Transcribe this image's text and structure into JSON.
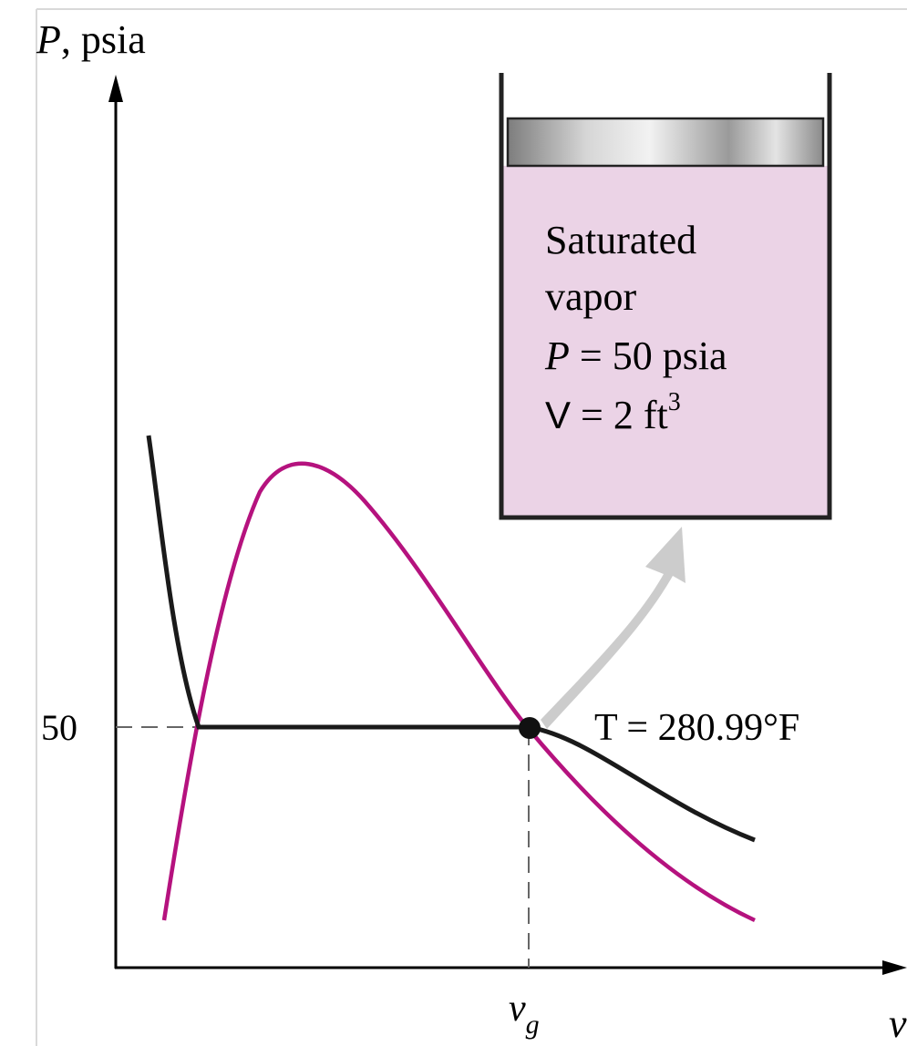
{
  "diagram": {
    "y_axis_label_var": "P",
    "y_axis_label_unit": ", psia",
    "x_axis_label": "v",
    "pressure_tick": "50",
    "vg_label_main": "v",
    "vg_label_sub": "g",
    "isotherm_label": "T = 280.99°F",
    "cylinder": {
      "line1": "Saturated",
      "line2": "vapor",
      "line3_var": "P",
      "line3_rest": " = 50 psia",
      "line4_var": "V",
      "line4_rest": " = 2 ft",
      "line4_sup": "3"
    },
    "colors": {
      "dome": "#b5127e",
      "isotherm": "#1a1a1a",
      "cylinder_fill": "#ebd3e6",
      "arrow": "#cccccc",
      "piston": "#bdbdbd"
    }
  }
}
